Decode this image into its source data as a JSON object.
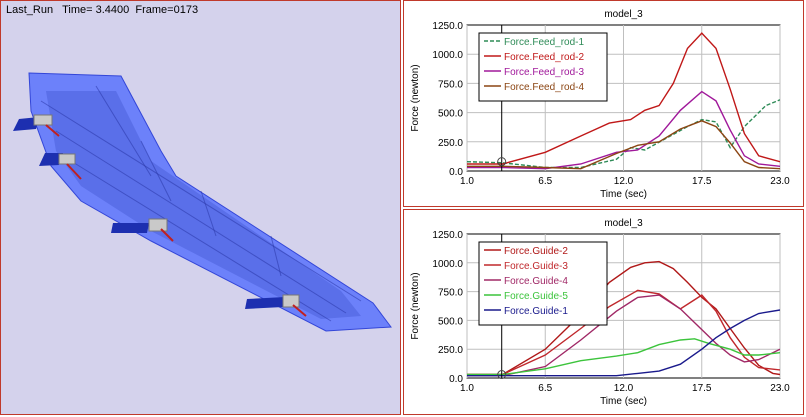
{
  "viewport": {
    "run_name": "Last_Run",
    "time_label": "Time=",
    "time_value": "3.4400",
    "frame_label": "Frame=",
    "frame_value": "0173"
  },
  "colors": {
    "panel_border": "#c0392b",
    "viewport_bg": "#d4d2ec",
    "wing": "#3b5bff",
    "actuator": "#1d2fb0",
    "plot_frame": "#000000",
    "grid": "#bfbfbf"
  },
  "chart_data": [
    {
      "type": "line",
      "title": "model_3",
      "xlabel": "Time (sec)",
      "ylabel": "Force (newton)",
      "xlim": [
        1.0,
        23.0
      ],
      "ylim": [
        0,
        1250
      ],
      "x_ticks": [
        "1.0",
        "6.5",
        "12.0",
        "17.5",
        "23.0"
      ],
      "x_tick_values": [
        1.0,
        6.5,
        12.0,
        17.5,
        23.0
      ],
      "y_ticks": [
        "0.0",
        "250.0",
        "500.0",
        "750.0",
        "1000.0",
        "1250.0"
      ],
      "y_tick_values": [
        0,
        250,
        500,
        750,
        1000,
        1250
      ],
      "grid": true,
      "legend_position": "top-left",
      "marker_x": 3.44,
      "series": [
        {
          "name": "Force.Feed_rod-1",
          "color": "#2e8b57",
          "dash": "4,2",
          "x": [
            1.0,
            3.5,
            6.5,
            9.0,
            11.5,
            12.5,
            13.5,
            15.0,
            16.5,
            17.5,
            18.5,
            19.5,
            20.5,
            22.0,
            23.0
          ],
          "y": [
            80,
            70,
            30,
            30,
            100,
            200,
            180,
            280,
            380,
            440,
            420,
            200,
            380,
            560,
            610
          ]
        },
        {
          "name": "Force.Feed_rod-2",
          "color": "#c01818",
          "x": [
            1.0,
            3.5,
            6.5,
            9.0,
            11.0,
            12.5,
            13.5,
            14.5,
            15.5,
            16.5,
            17.5,
            18.5,
            19.5,
            20.5,
            21.5,
            23.0
          ],
          "y": [
            60,
            60,
            160,
            300,
            410,
            440,
            520,
            560,
            750,
            1050,
            1180,
            1050,
            700,
            320,
            130,
            80
          ]
        },
        {
          "name": "Force.Feed_rod-3",
          "color": "#a0189a",
          "x": [
            1.0,
            3.5,
            6.5,
            9.0,
            11.5,
            13.0,
            14.5,
            16.0,
            17.5,
            18.5,
            19.5,
            20.5,
            21.5,
            23.0
          ],
          "y": [
            30,
            30,
            20,
            60,
            160,
            180,
            300,
            520,
            680,
            600,
            350,
            130,
            60,
            40
          ]
        },
        {
          "name": "Force.Feed_rod-4",
          "color": "#8b4513",
          "x": [
            1.0,
            3.5,
            6.5,
            9.0,
            11.5,
            13.0,
            14.5,
            16.0,
            17.5,
            18.5,
            19.5,
            20.5,
            21.5,
            23.0
          ],
          "y": [
            40,
            40,
            30,
            20,
            150,
            220,
            250,
            360,
            430,
            380,
            240,
            80,
            30,
            20
          ]
        }
      ]
    },
    {
      "type": "line",
      "title": "model_3",
      "xlabel": "Time (sec)",
      "ylabel": "Force (newton)",
      "xlim": [
        1.0,
        23.0
      ],
      "ylim": [
        0,
        1250
      ],
      "x_ticks": [
        "1.0",
        "6.5",
        "12.0",
        "17.5",
        "23.0"
      ],
      "x_tick_values": [
        1.0,
        6.5,
        12.0,
        17.5,
        23.0
      ],
      "y_ticks": [
        "0.0",
        "250.0",
        "500.0",
        "750.0",
        "1000.0",
        "1250.0"
      ],
      "y_tick_values": [
        0,
        250,
        500,
        750,
        1000,
        1250
      ],
      "grid": true,
      "legend_position": "top-left",
      "marker_x": 3.44,
      "series": [
        {
          "name": "Force.Guide-2",
          "color": "#b01818",
          "x": [
            1.0,
            3.5,
            6.5,
            9.0,
            11.0,
            12.5,
            13.5,
            14.5,
            15.5,
            16.5,
            17.5,
            18.5,
            19.5,
            20.5,
            21.5,
            22.5,
            23.0
          ],
          "y": [
            30,
            30,
            250,
            550,
            830,
            960,
            1000,
            1010,
            950,
            830,
            700,
            600,
            430,
            260,
            110,
            40,
            30
          ]
        },
        {
          "name": "Force.Guide-3",
          "color": "#c0282c",
          "x": [
            1.0,
            3.5,
            6.5,
            9.0,
            11.0,
            13.0,
            14.5,
            16.0,
            17.5,
            18.5,
            19.5,
            20.5,
            21.5,
            23.0
          ],
          "y": [
            30,
            30,
            200,
            430,
            620,
            760,
            730,
            600,
            720,
            580,
            350,
            180,
            90,
            70
          ]
        },
        {
          "name": "Force.Guide-4",
          "color": "#a02866",
          "x": [
            1.0,
            3.5,
            6.5,
            9.0,
            11.5,
            13.0,
            14.5,
            16.0,
            17.5,
            18.5,
            19.5,
            20.5,
            21.5,
            23.0
          ],
          "y": [
            20,
            20,
            100,
            330,
            580,
            700,
            720,
            600,
            420,
            300,
            200,
            140,
            160,
            250
          ]
        },
        {
          "name": "Force.Guide-5",
          "color": "#3cc43c",
          "x": [
            1.0,
            3.5,
            6.5,
            9.0,
            11.5,
            13.0,
            14.5,
            16.0,
            17.0,
            18.0,
            19.5,
            20.5,
            21.5,
            23.0
          ],
          "y": [
            30,
            30,
            80,
            150,
            190,
            220,
            290,
            330,
            340,
            300,
            250,
            200,
            200,
            220
          ]
        },
        {
          "name": "Force.Guide-1",
          "color": "#1a1a8c",
          "x": [
            1.0,
            3.5,
            6.5,
            9.0,
            11.5,
            13.0,
            14.5,
            16.0,
            17.5,
            18.5,
            19.5,
            20.5,
            21.5,
            23.0
          ],
          "y": [
            20,
            20,
            20,
            20,
            20,
            40,
            60,
            120,
            250,
            350,
            430,
            500,
            560,
            590
          ]
        }
      ]
    }
  ]
}
